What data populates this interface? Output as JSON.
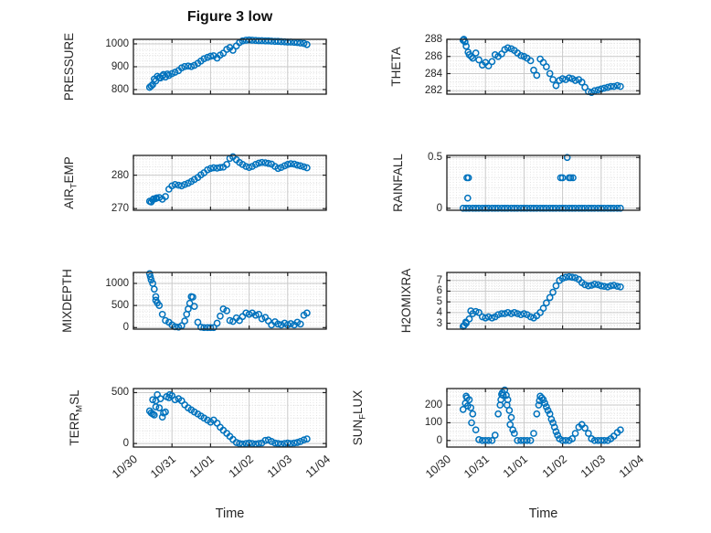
{
  "title": "Figure 3 low",
  "xlabel": "Time",
  "colors": {
    "marker": "#0072BD",
    "axis_box": "#1f1f1f",
    "grid_major": "#c9c9c9",
    "grid_minor": "#dddddd",
    "text": "#262626",
    "background": "#ffffff"
  },
  "chart_data": {
    "type": "scatter",
    "marker": "open-circle",
    "x_unit": "days-from-10/30",
    "xlim": [
      0,
      5
    ],
    "xticks": [
      0,
      1,
      2,
      3,
      4,
      5
    ],
    "xtick_labels": [
      "10/30",
      "10/31",
      "11/01",
      "11/02",
      "11/03",
      "11/04"
    ],
    "sample_times": [
      0.42,
      0.5,
      0.58,
      0.67,
      0.75,
      0.83,
      0.92,
      1.0,
      1.08,
      1.17,
      1.25,
      1.33,
      1.42,
      1.5,
      1.58,
      1.67,
      1.75,
      1.83,
      1.92,
      2.0,
      2.08,
      2.17,
      2.25,
      2.33,
      2.42,
      2.5,
      2.58,
      2.67,
      2.75,
      2.83,
      2.92,
      3.0,
      3.08,
      3.17,
      3.25,
      3.33,
      3.42,
      3.5,
      3.58,
      3.67,
      3.75,
      3.83,
      3.92,
      4.0,
      4.08,
      4.17,
      4.25,
      4.33,
      4.42,
      4.5
    ],
    "subplots": [
      {
        "id": "pressure",
        "label": "PRESSURE",
        "label_parts": [
          {
            "t": "PRESSURE"
          }
        ],
        "yticks": [
          800,
          900,
          1000
        ],
        "ytick_labels": [
          "800",
          "900",
          "1000"
        ],
        "ylim": [
          780,
          1020
        ],
        "values": [
          810,
          822,
          838,
          852,
          860,
          855,
          862,
          870,
          876,
          883,
          895,
          901,
          903,
          901,
          906,
          915,
          925,
          935,
          941,
          946,
          948,
          938,
          951,
          959,
          976,
          984,
          972,
          991,
          1006,
          1013,
          1016,
          1017,
          1016,
          1015,
          1014,
          1014,
          1013,
          1013,
          1012,
          1011,
          1011,
          1010,
          1009,
          1008,
          1008,
          1007,
          1006,
          1004,
          1002,
          997
        ],
        "extra_points": [
          [
            0.46,
            816
          ],
          [
            0.54,
            846
          ],
          [
            0.62,
            858
          ],
          [
            0.7,
            851
          ],
          [
            0.78,
            866
          ],
          [
            0.88,
            868
          ]
        ]
      },
      {
        "id": "theta",
        "label": "THETA",
        "label_parts": [
          {
            "t": "THETA"
          }
        ],
        "yticks": [
          282,
          284,
          286,
          288
        ],
        "ytick_labels": [
          "282",
          "284",
          "286",
          "288"
        ],
        "ylim": [
          281.6,
          288
        ],
        "values": [
          287.9,
          287.2,
          286.2,
          285.8,
          286.4,
          285.6,
          285.0,
          285.3,
          284.9,
          285.4,
          286.2,
          286.0,
          286.3,
          286.8,
          287.0,
          286.9,
          286.7,
          286.4,
          286.1,
          286.0,
          285.8,
          285.5,
          284.4,
          283.8,
          285.7,
          285.3,
          284.8,
          284.0,
          283.3,
          282.6,
          283.2,
          283.4,
          283.3,
          283.5,
          283.4,
          283.2,
          283.3,
          283.0,
          282.4,
          281.9,
          281.8,
          282.0,
          282.1,
          282.2,
          282.3,
          282.4,
          282.5,
          282.5,
          282.6,
          282.5
        ],
        "extra_points": [
          [
            0.44,
            288.0
          ],
          [
            0.47,
            287.7
          ],
          [
            0.55,
            286.5
          ],
          [
            0.63,
            286.0
          ]
        ]
      },
      {
        "id": "airtemp",
        "label": "AIR_TEMP",
        "label_parts": [
          {
            "t": "AIR"
          },
          {
            "sub": "T"
          },
          {
            "t": "EMP"
          }
        ],
        "yticks": [
          270,
          280
        ],
        "ytick_labels": [
          "270",
          "280"
        ],
        "ylim": [
          269.5,
          285.9
        ],
        "values": [
          272.2,
          272.6,
          273.0,
          273.3,
          272.8,
          273.6,
          275.8,
          276.8,
          277.2,
          277.0,
          276.8,
          277.2,
          277.6,
          278.1,
          278.7,
          279.3,
          280.1,
          280.7,
          281.6,
          282.0,
          282.2,
          282.1,
          282.3,
          282.4,
          283.2,
          285.0,
          285.5,
          284.6,
          283.8,
          283.2,
          282.6,
          282.3,
          282.6,
          283.2,
          283.6,
          283.8,
          283.7,
          283.5,
          283.3,
          282.6,
          282.0,
          282.3,
          282.8,
          283.2,
          283.4,
          283.3,
          283.0,
          282.8,
          282.5,
          282.2
        ],
        "extra_points": [
          [
            0.46,
            272.0
          ],
          [
            0.52,
            272.9
          ],
          [
            0.6,
            273.2
          ]
        ]
      },
      {
        "id": "rainfall",
        "label": "RAINFALL",
        "label_parts": [
          {
            "t": "RAINFALL"
          }
        ],
        "yticks": [
          0,
          0.5
        ],
        "ytick_labels": [
          "0",
          "0.5"
        ],
        "ylim": [
          -0.02,
          0.52
        ],
        "values": [
          0,
          0,
          0,
          0,
          0,
          0,
          0,
          0,
          0,
          0,
          0,
          0,
          0,
          0,
          0,
          0,
          0,
          0,
          0,
          0,
          0,
          0,
          0,
          0,
          0,
          0,
          0,
          0,
          0,
          0,
          0,
          0,
          0,
          0,
          0,
          0,
          0,
          0,
          0,
          0,
          0,
          0,
          0,
          0,
          0,
          0,
          0,
          0,
          0,
          0
        ],
        "extra_points": [
          [
            0.52,
            0.3
          ],
          [
            0.56,
            0.3
          ],
          [
            0.54,
            0.1
          ],
          [
            2.95,
            0.3
          ],
          [
            3.0,
            0.3
          ],
          [
            3.12,
            0.5
          ],
          [
            3.17,
            0.3
          ],
          [
            3.21,
            0.3
          ],
          [
            3.27,
            0.3
          ]
        ]
      },
      {
        "id": "mixdepth",
        "label": "MIXDEPTH",
        "label_parts": [
          {
            "t": "MIXDEPTH"
          }
        ],
        "yticks": [
          0,
          500,
          1000
        ],
        "ytick_labels": [
          "0",
          "500",
          "1000"
        ],
        "ylim": [
          -35,
          1248
        ],
        "values": [
          1220,
          1000,
          700,
          500,
          300,
          160,
          120,
          60,
          20,
          10,
          40,
          150,
          420,
          700,
          480,
          120,
          10,
          0,
          0,
          0,
          0,
          100,
          260,
          420,
          380,
          160,
          140,
          220,
          160,
          250,
          330,
          300,
          330,
          280,
          300,
          200,
          230,
          150,
          60,
          130,
          80,
          60,
          100,
          60,
          90,
          60,
          120,
          80,
          280,
          330
        ],
        "extra_points": [
          [
            0.44,
            1150
          ],
          [
            0.46,
            1080
          ],
          [
            0.54,
            870
          ],
          [
            0.58,
            620
          ],
          [
            0.62,
            560
          ],
          [
            1.38,
            300
          ],
          [
            1.46,
            550
          ],
          [
            1.54,
            690
          ]
        ]
      },
      {
        "id": "h2omixra",
        "label": "H2OMIXRA",
        "label_parts": [
          {
            "t": "H2OMIXRA"
          }
        ],
        "yticks": [
          3,
          4,
          5,
          6,
          7
        ],
        "ytick_labels": [
          "3",
          "4",
          "5",
          "6",
          "7"
        ],
        "ylim": [
          2.45,
          7.75
        ],
        "values": [
          2.7,
          3.0,
          3.4,
          3.9,
          4.1,
          4.0,
          3.6,
          3.5,
          3.6,
          3.5,
          3.6,
          3.8,
          3.9,
          3.9,
          4.0,
          3.9,
          4.0,
          3.9,
          3.8,
          3.9,
          3.8,
          3.6,
          3.5,
          3.7,
          4.0,
          4.4,
          4.9,
          5.4,
          5.9,
          6.5,
          7.0,
          7.2,
          7.3,
          7.35,
          7.3,
          7.25,
          7.1,
          6.8,
          6.6,
          6.5,
          6.55,
          6.65,
          6.6,
          6.5,
          6.45,
          6.4,
          6.5,
          6.55,
          6.45,
          6.4
        ],
        "extra_points": [
          [
            0.45,
            2.8
          ],
          [
            0.49,
            3.1
          ],
          [
            0.62,
            4.15
          ]
        ]
      },
      {
        "id": "terrmsl",
        "label": "TERR_MSL",
        "label_parts": [
          {
            "t": "TERR"
          },
          {
            "sub": "M"
          },
          {
            "t": "SL"
          }
        ],
        "yticks": [
          0,
          500
        ],
        "ytick_labels": [
          "0",
          "500"
        ],
        "ylim": [
          -35,
          540
        ],
        "values": [
          320,
          290,
          420,
          350,
          260,
          310,
          450,
          470,
          430,
          440,
          420,
          380,
          350,
          330,
          310,
          290,
          270,
          250,
          230,
          210,
          230,
          200,
          160,
          130,
          100,
          70,
          40,
          10,
          0,
          -5,
          0,
          5,
          0,
          -5,
          0,
          5,
          30,
          35,
          20,
          5,
          0,
          -5,
          0,
          5,
          0,
          5,
          10,
          20,
          35,
          45
        ],
        "extra_points": [
          [
            0.46,
            300
          ],
          [
            0.5,
            430
          ],
          [
            0.54,
            280
          ],
          [
            0.58,
            360
          ],
          [
            0.62,
            480
          ],
          [
            0.7,
            440
          ],
          [
            0.78,
            300
          ],
          [
            0.86,
            460
          ],
          [
            0.94,
            480
          ]
        ]
      },
      {
        "id": "sunflux",
        "label": "SUN_FLUX",
        "label_parts": [
          {
            "t": "SUN"
          },
          {
            "sub": "F"
          },
          {
            "t": "LUX"
          }
        ],
        "yticks": [
          0,
          100,
          200
        ],
        "ytick_labels": [
          "0",
          "100",
          "200"
        ],
        "ylim": [
          -37,
          293
        ],
        "values": [
          175,
          250,
          230,
          150,
          60,
          5,
          0,
          0,
          0,
          0,
          30,
          150,
          260,
          285,
          230,
          130,
          40,
          0,
          0,
          0,
          0,
          0,
          40,
          150,
          250,
          230,
          190,
          150,
          100,
          50,
          10,
          0,
          0,
          0,
          10,
          40,
          75,
          90,
          70,
          40,
          10,
          0,
          0,
          0,
          0,
          0,
          10,
          25,
          45,
          60
        ],
        "extra_points": [
          [
            0.48,
            210
          ],
          [
            0.52,
            240
          ],
          [
            0.54,
            195
          ],
          [
            0.62,
            185
          ],
          [
            0.64,
            100
          ],
          [
            1.38,
            200
          ],
          [
            1.4,
            230
          ],
          [
            1.44,
            270
          ],
          [
            1.46,
            255
          ],
          [
            1.54,
            255
          ],
          [
            1.56,
            200
          ],
          [
            1.62,
            170
          ],
          [
            1.64,
            90
          ],
          [
            1.71,
            60
          ],
          [
            2.38,
            200
          ],
          [
            2.4,
            225
          ],
          [
            2.46,
            240
          ],
          [
            2.54,
            210
          ],
          [
            2.62,
            170
          ],
          [
            2.71,
            120
          ],
          [
            2.79,
            75
          ],
          [
            2.87,
            30
          ]
        ]
      }
    ]
  }
}
